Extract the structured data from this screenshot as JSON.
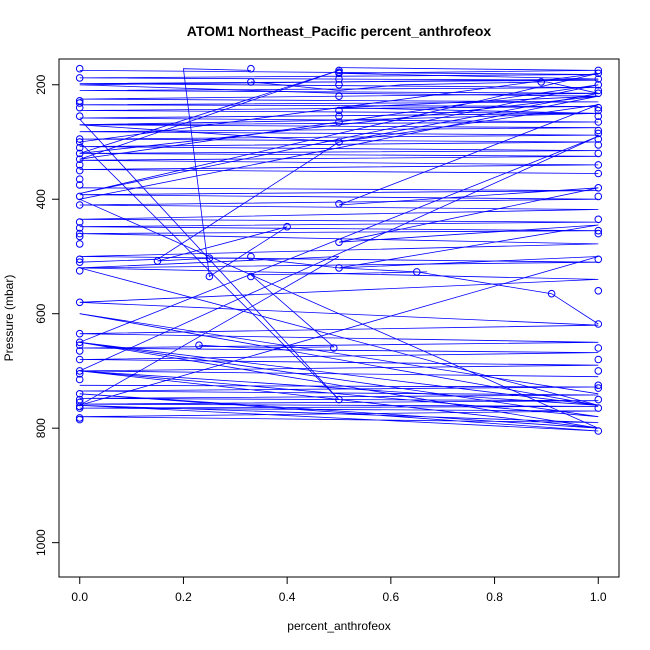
{
  "chart_data": {
    "type": "line",
    "title": "ATOM1 Northeast_Pacific percent_anthrofeox",
    "xlabel": "percent_anthrofeox",
    "ylabel": "Pressure (mbar)",
    "xlim": [
      -0.04,
      1.04
    ],
    "ylim": [
      1060,
      155
    ],
    "y_inverted": true,
    "xticks": [
      0.0,
      0.2,
      0.4,
      0.6,
      0.8,
      1.0
    ],
    "xtick_labels": [
      "0.0",
      "0.2",
      "0.4",
      "0.6",
      "0.8",
      "1.0"
    ],
    "yticks": [
      200,
      400,
      600,
      800,
      1000
    ],
    "ytick_labels": [
      "200",
      "400",
      "600",
      "800",
      "1000"
    ],
    "grid": false,
    "line_color": "#0000ff",
    "series": [
      {
        "x": [
          0,
          1,
          0,
          1,
          0,
          1,
          0,
          1,
          0,
          1,
          0,
          1,
          0,
          1,
          0,
          1,
          0,
          1,
          0,
          1,
          0,
          1,
          0,
          1,
          0,
          1,
          0,
          1,
          0,
          1
        ],
        "y": [
          175,
          182,
          188,
          192,
          198,
          205,
          210,
          215,
          225,
          230,
          235,
          238,
          245,
          250,
          258,
          265,
          270,
          275,
          282,
          288,
          295,
          300,
          308,
          315,
          320,
          325,
          332,
          340,
          348,
          355
        ]
      },
      {
        "x": [
          0,
          1,
          0,
          1,
          0,
          1,
          0,
          1,
          0,
          1,
          0,
          1,
          0,
          1,
          0,
          1,
          0,
          1,
          0,
          1,
          0,
          1,
          0,
          1,
          0,
          1
        ],
        "y": [
          380,
          385,
          392,
          400,
          410,
          418,
          435,
          440,
          448,
          455,
          460,
          478,
          500,
          510,
          520,
          540,
          580,
          620,
          635,
          650,
          660,
          668,
          680,
          690,
          700,
          710
        ]
      },
      {
        "x": [
          0,
          1,
          0,
          1,
          0,
          1,
          0,
          1,
          0,
          1,
          0,
          1,
          0,
          1,
          0,
          1,
          0,
          1,
          0,
          1,
          0,
          1
        ],
        "y": [
          725,
          728,
          735,
          742,
          748,
          752,
          758,
          762,
          765,
          770,
          780,
          790,
          760,
          805,
          740,
          800,
          700,
          780,
          650,
          760,
          600,
          740
        ]
      },
      {
        "x": [
          0.5,
          1,
          0.5,
          1,
          0.5,
          0,
          0.5,
          1,
          0.5,
          1,
          0.5,
          0,
          0.5,
          1,
          0.5,
          1,
          0.5,
          1,
          0.5,
          1
        ],
        "y": [
          170,
          175,
          180,
          190,
          195,
          200,
          215,
          220,
          240,
          250,
          262,
          270,
          300,
          235,
          410,
          380,
          475,
          445,
          520,
          500
        ]
      },
      {
        "x": [
          0,
          0.5,
          0,
          1,
          0,
          1,
          0,
          0.5,
          0,
          1,
          0,
          1,
          0,
          1,
          0,
          1,
          0,
          0.5,
          0,
          1
        ],
        "y": [
          260,
          750,
          300,
          180,
          390,
          200,
          330,
          175,
          320,
          220,
          400,
          800,
          650,
          290,
          700,
          760,
          520,
          500,
          760,
          500
        ]
      },
      {
        "x": [
          0.33,
          0.2,
          0.25,
          0.4,
          0.15,
          0.25,
          0.33,
          0.5,
          0.65,
          0.91,
          1
        ],
        "y": [
          175,
          172,
          535,
          448,
          508,
          503,
          503,
          520,
          527,
          565,
          618
        ]
      },
      {
        "x": [
          0.23,
          0.33,
          0.49,
          0.33,
          0.5,
          0.67
        ],
        "y": [
          655,
          660,
          658,
          532,
          530,
          527
        ]
      },
      {
        "x": [
          0.33,
          0.5,
          0.62,
          0.9,
          1,
          0.5,
          0.15,
          0
        ],
        "y": [
          195,
          210,
          200,
          195,
          215,
          300,
          505,
          510
        ]
      }
    ],
    "points": {
      "x": [
        0,
        0,
        0,
        0,
        0,
        0,
        0,
        0,
        0,
        0,
        0,
        0,
        0,
        0,
        0,
        0,
        0,
        0,
        0,
        0,
        0,
        0,
        0,
        0,
        0,
        0,
        0,
        0,
        0,
        0,
        0,
        0,
        0,
        0,
        0,
        0,
        0,
        0,
        0,
        0,
        0,
        1,
        1,
        1,
        1,
        1,
        1,
        1,
        1,
        1,
        1,
        1,
        1,
        1,
        1,
        1,
        1,
        1,
        1,
        1,
        1,
        1,
        1,
        1,
        1,
        1,
        1,
        1,
        1,
        1,
        1,
        1,
        1,
        1,
        0.5,
        0.5,
        0.5,
        0.5,
        0.5,
        0.5,
        0.5,
        0.5,
        0.5,
        0.5,
        0.5,
        0.5,
        0.5,
        0.5,
        0.33,
        0.33,
        0.33,
        0.33,
        0.4,
        0.25,
        0.25,
        0.15,
        0.23,
        0.49,
        0.65,
        0.91,
        0.89
      ],
      "y": [
        172,
        188,
        228,
        232,
        240,
        255,
        295,
        300,
        310,
        320,
        330,
        340,
        350,
        365,
        375,
        395,
        410,
        440,
        450,
        460,
        465,
        478,
        505,
        510,
        525,
        580,
        635,
        650,
        655,
        665,
        680,
        700,
        705,
        715,
        740,
        750,
        755,
        762,
        765,
        782,
        785,
        175,
        180,
        190,
        200,
        210,
        215,
        240,
        245,
        255,
        265,
        280,
        285,
        295,
        305,
        320,
        340,
        355,
        380,
        395,
        435,
        455,
        460,
        505,
        560,
        618,
        660,
        680,
        700,
        725,
        730,
        750,
        765,
        805,
        175,
        180,
        190,
        200,
        220,
        245,
        255,
        265,
        300,
        408,
        475,
        520,
        750,
        178,
        172,
        195,
        500,
        535,
        448,
        503,
        535,
        508,
        655,
        660,
        527,
        565,
        195
      ]
    }
  }
}
